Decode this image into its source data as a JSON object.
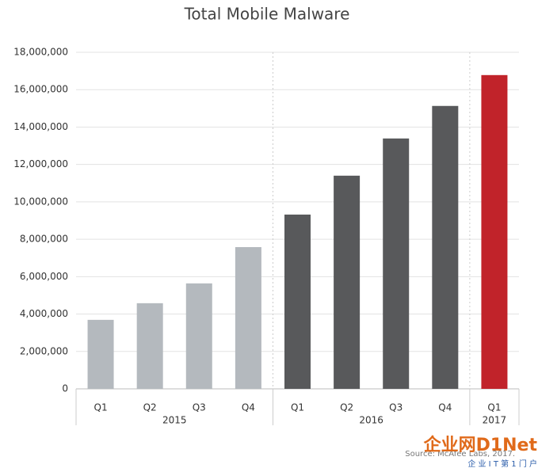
{
  "chart_data": {
    "type": "bar",
    "title": "Total Mobile Malware",
    "groups": [
      {
        "label": "2015",
        "color": "#b4b9be",
        "categories": [
          "Q1",
          "Q2",
          "Q3",
          "Q4"
        ],
        "values": [
          3690000,
          4580000,
          5640000,
          7580000
        ]
      },
      {
        "label": "2016",
        "color": "#58595b",
        "categories": [
          "Q1",
          "Q2",
          "Q3",
          "Q4"
        ],
        "values": [
          9320000,
          11400000,
          13390000,
          15130000
        ]
      },
      {
        "label": "2017",
        "color": "#c1232a",
        "categories": [
          "Q1"
        ],
        "values": [
          16780000
        ]
      }
    ],
    "ylim": [
      0,
      18000000
    ],
    "yticks": [
      0,
      {
        "value": 2000000,
        "label": "2,000,000"
      },
      {
        "value": 4000000,
        "label": "4,000,000"
      },
      {
        "value": 6000000,
        "label": "6,000,000"
      },
      {
        "value": 8000000,
        "label": "8,000,000"
      },
      {
        "value": 10000000,
        "label": "10,000,000"
      },
      {
        "value": 12000000,
        "label": "12,000,000"
      },
      {
        "value": 14000000,
        "label": "14,000,000"
      },
      {
        "value": 16000000,
        "label": "16,000,000"
      },
      {
        "value": 18000000,
        "label": "18,000,000"
      }
    ],
    "grid": true,
    "source": "Source: McAfee Labs, 2017.",
    "watermark": "企业网D1Net",
    "watermark_sub": "企 业 I T 第 1 门 户"
  }
}
